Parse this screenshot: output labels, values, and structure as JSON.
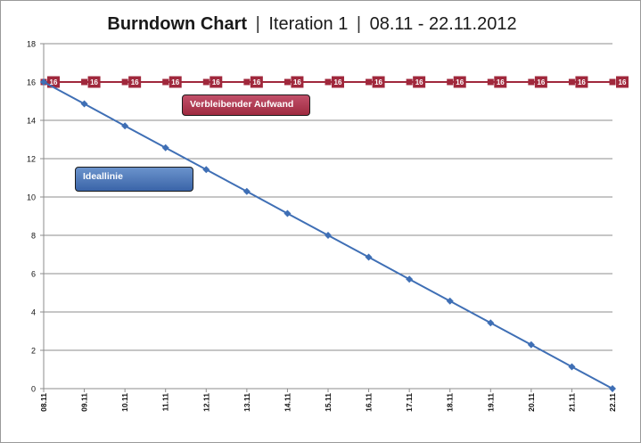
{
  "title": {
    "main": "Burndown Chart",
    "iteration": "Iteration 1",
    "dates": "08.11 - 22.11.2012"
  },
  "legend_labels": {
    "remaining": "Verbleibender Aufwand",
    "ideal": "Ideallinie"
  },
  "chart_data": {
    "type": "line",
    "title": "Burndown Chart | Iteration 1 | 08.11 - 22.11.2012",
    "categories": [
      "08.11",
      "09.11",
      "10.11",
      "11.11",
      "12.11",
      "13.11",
      "14.11",
      "15.11",
      "16.11",
      "17.11",
      "18.11",
      "19.11",
      "20.11",
      "21.11",
      "22.11"
    ],
    "ylim": [
      0,
      18
    ],
    "yticks": [
      0,
      2,
      4,
      6,
      8,
      10,
      12,
      14,
      16,
      18
    ],
    "grid": true,
    "series": [
      {
        "name": "Verbleibender Aufwand",
        "color": "#a0283c",
        "marker": "square",
        "values": [
          16,
          16,
          16,
          16,
          16,
          16,
          16,
          16,
          16,
          16,
          16,
          16,
          16,
          16,
          16
        ],
        "data_labels": [
          "16",
          "16",
          "16",
          "16",
          "16",
          "16",
          "16",
          "16",
          "16",
          "16",
          "16",
          "16",
          "16",
          "16",
          "16"
        ]
      },
      {
        "name": "Ideallinie",
        "color": "#3f6fb5",
        "marker": "diamond",
        "values": [
          16,
          14.86,
          13.71,
          12.57,
          11.43,
          10.29,
          9.14,
          8,
          6.86,
          5.71,
          4.57,
          3.43,
          2.29,
          1.14,
          0
        ]
      }
    ]
  }
}
